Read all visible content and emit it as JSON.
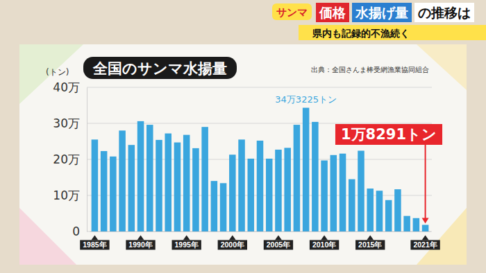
{
  "header": {
    "tag": "サンマ",
    "parts": [
      "価格",
      "水揚げ量",
      "の推移は"
    ],
    "subtitle": "県内も記録的不漁続く"
  },
  "chart_data": {
    "type": "bar",
    "title": "全国のサンマ水揚量",
    "y_label": "(トン)",
    "source": "出典：全国さんま棒受網漁業協同組合",
    "categories": [
      "1985年",
      null,
      null,
      null,
      null,
      "1990年",
      null,
      null,
      null,
      null,
      "1995年",
      null,
      null,
      null,
      null,
      "2000年",
      null,
      null,
      null,
      null,
      "2005年",
      null,
      null,
      null,
      null,
      "2010年",
      null,
      null,
      null,
      null,
      "2015年",
      null,
      null,
      null,
      null,
      null,
      "2021年"
    ],
    "values": [
      255000,
      223000,
      208000,
      280000,
      240000,
      306000,
      296000,
      254000,
      272000,
      247000,
      268000,
      231000,
      290000,
      140000,
      134000,
      213000,
      255000,
      202000,
      252000,
      202000,
      227000,
      232000,
      296000,
      343225,
      304000,
      197000,
      212000,
      216000,
      145000,
      224000,
      119000,
      113000,
      87000,
      117000,
      43000,
      37000,
      18291
    ],
    "color": "#3aa6de",
    "ylim": [
      0,
      400000
    ],
    "yticks": [
      {
        "value": 0,
        "label": "0"
      },
      {
        "value": 100000,
        "label": "10万"
      },
      {
        "value": 200000,
        "label": "20万"
      },
      {
        "value": 300000,
        "label": "30万"
      },
      {
        "value": 400000,
        "label": "40万"
      }
    ],
    "grid": true,
    "annotations": [
      {
        "text": "34万3225トン",
        "value": 343225,
        "color": "#3aa6de"
      },
      {
        "text": "1万8291トン",
        "value": 18291,
        "color": "#e8262c"
      }
    ]
  }
}
